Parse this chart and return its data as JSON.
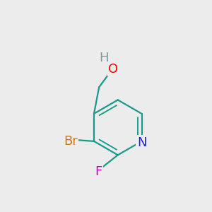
{
  "background_color": "#ececec",
  "atom_colors": {
    "C": "#1a9b8a",
    "N": "#2424e8",
    "Br": "#c87820",
    "F": "#cc00cc",
    "O": "#ff0000",
    "H": "#7a9a9a"
  },
  "bond_color": "#1a9b8a",
  "bond_width": 1.6,
  "font_size": 13
}
